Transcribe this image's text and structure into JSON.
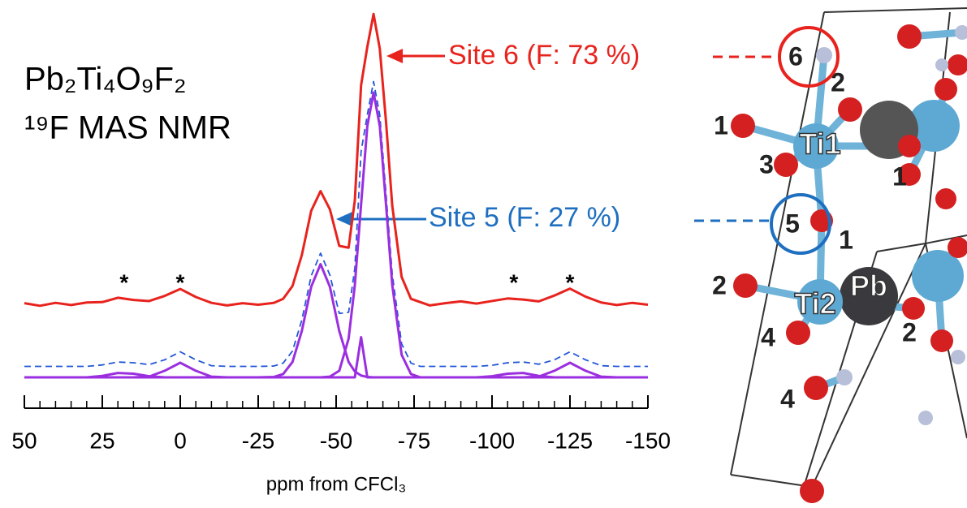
{
  "chart_data": {
    "type": "line",
    "title": "Pb₂Ti₄O₉F₂",
    "subtitle": "¹⁹F MAS NMR",
    "x_label": "ppm from CFCl₃",
    "xlim": [
      50,
      -150
    ],
    "xticks": [
      50,
      25,
      0,
      -25,
      -50,
      -75,
      -100,
      -125,
      -150
    ],
    "xminor_step": 5,
    "ylim": [
      0,
      100
    ],
    "x": [
      50,
      45,
      40,
      35,
      30,
      25,
      20,
      15,
      10,
      5,
      0,
      -5,
      -10,
      -15,
      -20,
      -25,
      -30,
      -33,
      -36,
      -39,
      -42,
      -45,
      -48,
      -51,
      -54,
      -56,
      -58,
      -60,
      -62,
      -64,
      -66,
      -68,
      -71,
      -74,
      -77,
      -80,
      -85,
      -90,
      -95,
      -100,
      -105,
      -110,
      -115,
      -120,
      -125,
      -130,
      -135,
      -140,
      -145,
      -150
    ],
    "series": [
      {
        "color": "#e8231e",
        "dashed": false,
        "values": [
          20.3,
          19.6,
          20.4,
          19.8,
          20.5,
          20.6,
          21.8,
          21.2,
          20.9,
          22.3,
          24.2,
          22.0,
          20.4,
          19.7,
          20.3,
          19.9,
          20.4,
          21.5,
          25.0,
          33.5,
          45.6,
          51.0,
          46.0,
          36.0,
          35.5,
          48.5,
          80.0,
          90.5,
          99.5,
          90.0,
          70.0,
          47.0,
          27.5,
          21.5,
          20.6,
          19.7,
          20.3,
          20.8,
          20.2,
          20.9,
          21.6,
          21.3,
          20.8,
          22.4,
          24.3,
          22.1,
          20.5,
          19.8,
          20.4,
          19.9
        ]
      },
      {
        "color": "#2457d8",
        "dashed": true,
        "values": [
          3,
          3,
          3,
          3,
          3,
          3.4,
          4.2,
          4.0,
          3.5,
          4.8,
          7,
          4.8,
          3.2,
          3,
          3,
          3,
          3.1,
          3.9,
          7.2,
          15.7,
          27.8,
          34,
          28.0,
          17.5,
          17.8,
          29.9,
          61.8,
          71.9,
          81,
          71.8,
          50.3,
          28.3,
          9.2,
          3.9,
          3,
          3,
          3,
          3,
          3,
          3.3,
          4.0,
          4.2,
          3.6,
          4.8,
          7,
          4.8,
          3.2,
          3,
          3,
          3
        ]
      },
      {
        "color": "#9b2fe0",
        "dashed": false,
        "values": [
          0,
          0,
          0,
          0,
          0,
          0,
          0,
          0,
          0.2,
          1.8,
          4,
          1.8,
          0.2,
          0,
          0,
          0,
          0,
          0,
          0,
          0,
          0,
          0,
          0.2,
          1.8,
          10.6,
          25.3,
          47.3,
          68.8,
          78,
          68.8,
          47.3,
          25.3,
          6.2,
          0.9,
          0,
          0,
          0,
          0,
          0,
          0,
          0,
          0,
          0.2,
          1.8,
          4,
          1.8,
          0.2,
          0,
          0,
          0
        ]
      },
      {
        "color": "#9b2fe0",
        "dashed": false,
        "values": [
          0,
          0,
          0,
          0,
          0,
          0.4,
          1.2,
          1.0,
          0.3,
          0,
          0,
          0,
          0,
          0,
          0,
          0,
          0.1,
          0.9,
          4.2,
          12.7,
          24.8,
          31,
          24.8,
          12.7,
          4.2,
          1.6,
          0.5,
          0.1,
          0,
          0,
          0,
          0,
          0,
          0,
          0,
          0,
          0,
          0,
          0,
          0.3,
          1.0,
          1.2,
          0.4,
          0,
          0,
          0,
          0,
          0,
          0,
          0
        ]
      },
      {
        "color": "#9b2fe0",
        "dashed": false,
        "values": [
          0,
          0,
          0,
          0,
          0,
          0,
          0,
          0,
          0,
          0,
          0,
          0,
          0,
          0,
          0,
          0,
          0,
          0,
          0,
          0,
          0,
          0,
          0,
          0,
          0,
          0,
          11,
          0,
          0,
          0,
          0,
          0,
          0,
          0,
          0,
          0,
          0,
          0,
          0,
          0,
          0,
          0,
          0,
          0,
          0,
          0,
          0,
          0,
          0,
          0
        ]
      }
    ],
    "markers": [
      {
        "text": "*",
        "x": 18
      },
      {
        "text": "*",
        "x": 0
      },
      {
        "text": "*",
        "x": -107
      },
      {
        "text": "*",
        "x": -125
      }
    ],
    "annotations": [
      {
        "text": "Site 6 (F: 73 %)",
        "color": "#e8231e"
      },
      {
        "text": "Site 5 (F: 27 %)",
        "color": "#1f6fc0"
      }
    ]
  },
  "structure": {
    "labels": [
      "6",
      "2",
      "1",
      "Ti1",
      "3",
      "1",
      "5",
      "1",
      "2",
      "Ti2",
      "Pb",
      "4",
      "2",
      "4"
    ]
  }
}
